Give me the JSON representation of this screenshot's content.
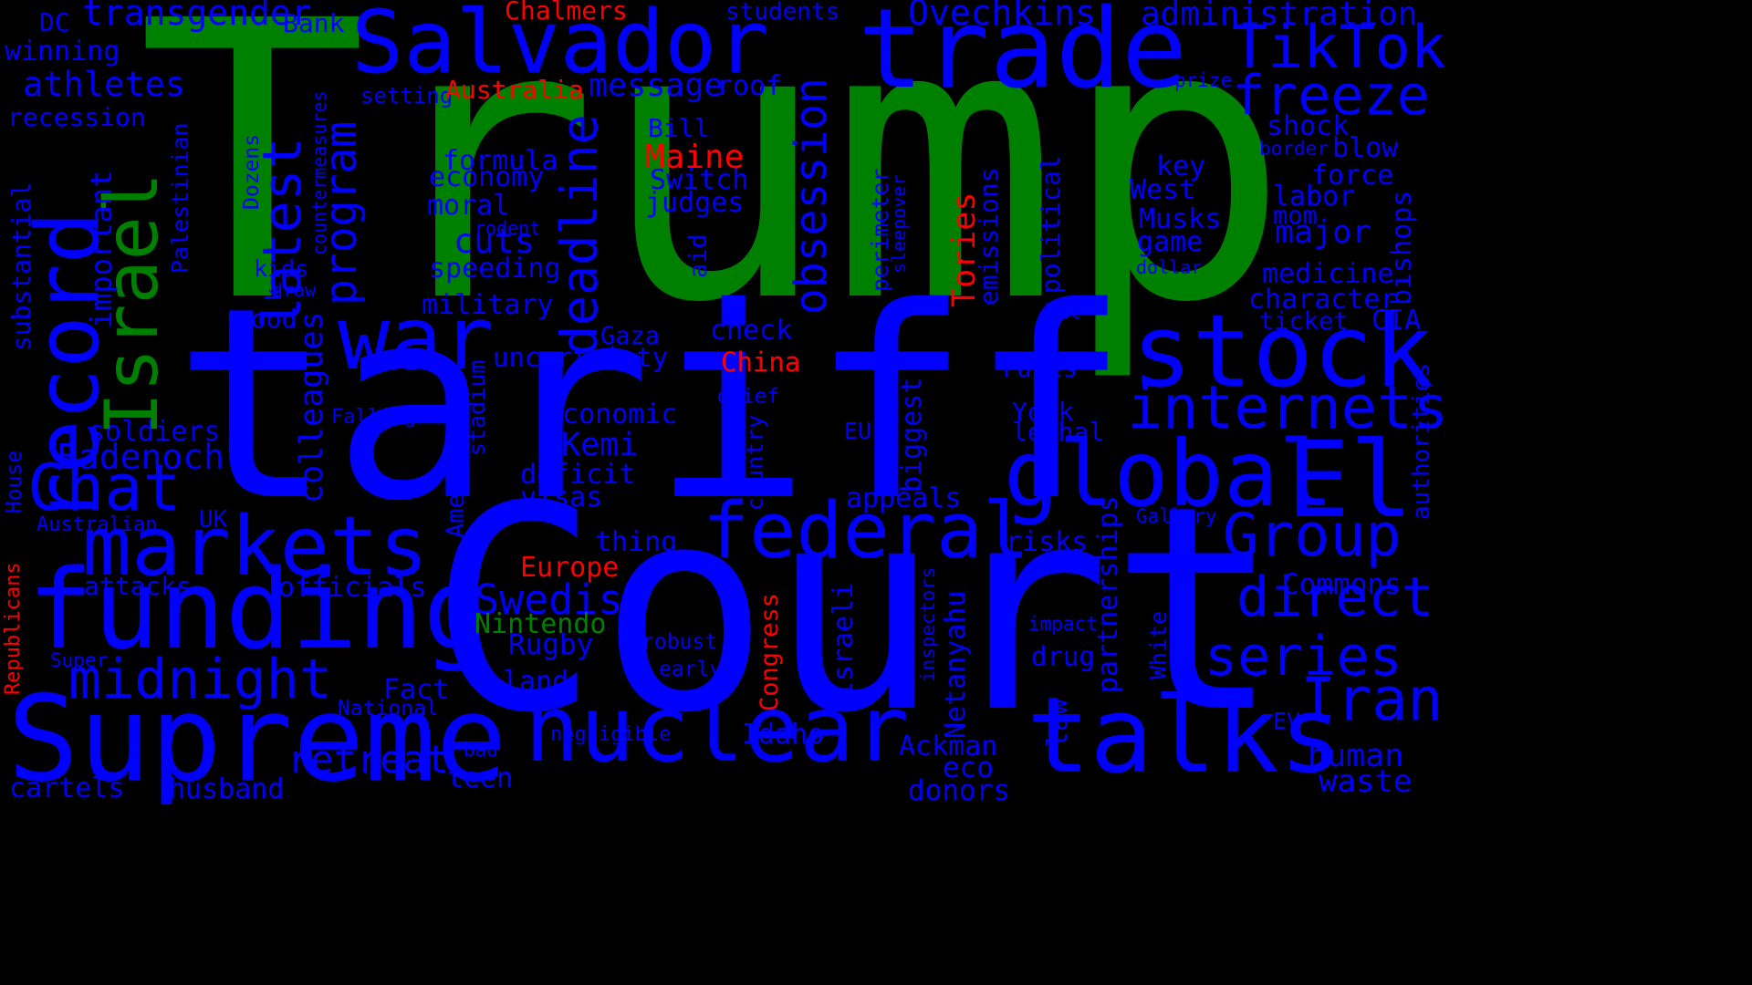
{
  "colors": {
    "background": "#000000",
    "blue": "#0000ff",
    "green": "#008000",
    "red": "#ff0000"
  },
  "words": [
    {
      "text": "Trump",
      "color": "green",
      "vertical": false
    },
    {
      "text": "tariff",
      "color": "blue",
      "vertical": false
    },
    {
      "text": "Court",
      "color": "blue",
      "vertical": false
    },
    {
      "text": "Supreme",
      "color": "blue",
      "vertical": false
    },
    {
      "text": "funding",
      "color": "blue",
      "vertical": false
    },
    {
      "text": "markets",
      "color": "blue",
      "vertical": false
    },
    {
      "text": "nuclear",
      "color": "blue",
      "vertical": false
    },
    {
      "text": "talks",
      "color": "blue",
      "vertical": false
    },
    {
      "text": "trade",
      "color": "blue",
      "vertical": false
    },
    {
      "text": "Salvador",
      "color": "blue",
      "vertical": false
    },
    {
      "text": "stock",
      "color": "blue",
      "vertical": false
    },
    {
      "text": "global",
      "color": "blue",
      "vertical": false
    },
    {
      "text": "El",
      "color": "blue",
      "vertical": false
    },
    {
      "text": "federal",
      "color": "blue",
      "vertical": false
    },
    {
      "text": "war",
      "color": "blue",
      "vertical": false
    },
    {
      "text": "Chat",
      "color": "blue",
      "vertical": false
    },
    {
      "text": "midnight",
      "color": "blue",
      "vertical": false
    },
    {
      "text": "internets",
      "color": "blue",
      "vertical": false
    },
    {
      "text": "direct",
      "color": "blue",
      "vertical": false
    },
    {
      "text": "series",
      "color": "blue",
      "vertical": false
    },
    {
      "text": "Iran",
      "color": "blue",
      "vertical": false
    },
    {
      "text": "Group",
      "color": "blue",
      "vertical": false
    },
    {
      "text": "TikTok",
      "color": "blue",
      "vertical": false
    },
    {
      "text": "freeze",
      "color": "blue",
      "vertical": false
    },
    {
      "text": "Swedish",
      "color": "blue",
      "vertical": false
    },
    {
      "text": "retreat",
      "color": "blue",
      "vertical": false
    },
    {
      "text": "Ovechkins",
      "color": "blue",
      "vertical": false
    },
    {
      "text": "administration",
      "color": "blue",
      "vertical": false
    },
    {
      "text": "transgender",
      "color": "blue",
      "vertical": false
    },
    {
      "text": "athletes",
      "color": "blue",
      "vertical": false
    },
    {
      "text": "Badenoch",
      "color": "blue",
      "vertical": false
    },
    {
      "text": "Kemi",
      "color": "blue",
      "vertical": false
    },
    {
      "text": "cuts",
      "color": "blue",
      "vertical": false
    },
    {
      "text": "message",
      "color": "blue",
      "vertical": false
    },
    {
      "text": "roof",
      "color": "blue",
      "vertical": false
    },
    {
      "text": "formula",
      "color": "blue",
      "vertical": false
    },
    {
      "text": "economy",
      "color": "blue",
      "vertical": false
    },
    {
      "text": "moral",
      "color": "blue",
      "vertical": false
    },
    {
      "text": "speeding",
      "color": "blue",
      "vertical": false
    },
    {
      "text": "military",
      "color": "blue",
      "vertical": false
    },
    {
      "text": "Gaza",
      "color": "blue",
      "vertical": false
    },
    {
      "text": "uncertainty",
      "color": "blue",
      "vertical": false
    },
    {
      "text": "economic",
      "color": "blue",
      "vertical": false
    },
    {
      "text": "deficit",
      "color": "blue",
      "vertical": false
    },
    {
      "text": "visas",
      "color": "blue",
      "vertical": false
    },
    {
      "text": "thing",
      "color": "blue",
      "vertical": false
    },
    {
      "text": "Rugby",
      "color": "blue",
      "vertical": false
    },
    {
      "text": "land",
      "color": "blue",
      "vertical": false
    },
    {
      "text": "teen",
      "color": "blue",
      "vertical": false
    },
    {
      "text": "Fact",
      "color": "blue",
      "vertical": false
    },
    {
      "text": "husband",
      "color": "blue",
      "vertical": false
    },
    {
      "text": "cartels",
      "color": "blue",
      "vertical": false
    },
    {
      "text": "soldiers",
      "color": "blue",
      "vertical": false
    },
    {
      "text": "officials",
      "color": "blue",
      "vertical": false
    },
    {
      "text": "attacks",
      "color": "blue",
      "vertical": false
    },
    {
      "text": "recession",
      "color": "blue",
      "vertical": false
    },
    {
      "text": "winning",
      "color": "blue",
      "vertical": false
    },
    {
      "text": "DC",
      "color": "blue",
      "vertical": false
    },
    {
      "text": "Bank",
      "color": "blue",
      "vertical": false
    },
    {
      "text": "students",
      "color": "blue",
      "vertical": false
    },
    {
      "text": "setting",
      "color": "blue",
      "vertical": false
    },
    {
      "text": "prize",
      "color": "blue",
      "vertical": false
    },
    {
      "text": "shock",
      "color": "blue",
      "vertical": false
    },
    {
      "text": "blow",
      "color": "blue",
      "vertical": false
    },
    {
      "text": "border",
      "color": "blue",
      "vertical": false
    },
    {
      "text": "force",
      "color": "blue",
      "vertical": false
    },
    {
      "text": "key",
      "color": "blue",
      "vertical": false
    },
    {
      "text": "West",
      "color": "blue",
      "vertical": false
    },
    {
      "text": "labor",
      "color": "blue",
      "vertical": false
    },
    {
      "text": "mom",
      "color": "blue",
      "vertical": false
    },
    {
      "text": "Musks",
      "color": "blue",
      "vertical": false
    },
    {
      "text": "major",
      "color": "blue",
      "vertical": false
    },
    {
      "text": "game",
      "color": "blue",
      "vertical": false
    },
    {
      "text": "dollar",
      "color": "blue",
      "vertical": false
    },
    {
      "text": "medicine",
      "color": "blue",
      "vertical": false
    },
    {
      "text": "character",
      "color": "blue",
      "vertical": false
    },
    {
      "text": "ticket",
      "color": "blue",
      "vertical": false
    },
    {
      "text": "CIA",
      "color": "blue",
      "vertical": false
    },
    {
      "text": "Bill",
      "color": "blue",
      "vertical": false
    },
    {
      "text": "Switch",
      "color": "blue",
      "vertical": false
    },
    {
      "text": "judges",
      "color": "blue",
      "vertical": false
    },
    {
      "text": "check",
      "color": "blue",
      "vertical": false
    },
    {
      "text": "rules",
      "color": "blue",
      "vertical": false
    },
    {
      "text": "York",
      "color": "blue",
      "vertical": false
    },
    {
      "text": "lethal",
      "color": "blue",
      "vertical": false
    },
    {
      "text": "chief",
      "color": "blue",
      "vertical": false
    },
    {
      "text": "Falling",
      "color": "blue",
      "vertical": false
    },
    {
      "text": "EU",
      "color": "blue",
      "vertical": false
    },
    {
      "text": "appeals",
      "color": "blue",
      "vertical": false
    },
    {
      "text": "risks",
      "color": "blue",
      "vertical": false
    },
    {
      "text": "Gallery",
      "color": "blue",
      "vertical": false
    },
    {
      "text": "Commons",
      "color": "blue",
      "vertical": false
    },
    {
      "text": "impact",
      "color": "blue",
      "vertical": false
    },
    {
      "text": "drug",
      "color": "blue",
      "vertical": false
    },
    {
      "text": "robust",
      "color": "blue",
      "vertical": false
    },
    {
      "text": "early",
      "color": "blue",
      "vertical": false
    },
    {
      "text": "negligible",
      "color": "blue",
      "vertical": false
    },
    {
      "text": "bad",
      "color": "blue",
      "vertical": false
    },
    {
      "text": "Idaho",
      "color": "blue",
      "vertical": false
    },
    {
      "text": "Ackman",
      "color": "blue",
      "vertical": false
    },
    {
      "text": "eco",
      "color": "blue",
      "vertical": false
    },
    {
      "text": "donors",
      "color": "blue",
      "vertical": false
    },
    {
      "text": "human",
      "color": "blue",
      "vertical": false
    },
    {
      "text": "waste",
      "color": "blue",
      "vertical": false
    },
    {
      "text": "EV",
      "color": "blue",
      "vertical": false
    },
    {
      "text": "UK",
      "color": "blue",
      "vertical": false
    },
    {
      "text": "Australian",
      "color": "blue",
      "vertical": false
    },
    {
      "text": "Super",
      "color": "blue",
      "vertical": false
    },
    {
      "text": "National",
      "color": "blue",
      "vertical": false
    },
    {
      "text": "kids",
      "color": "blue",
      "vertical": false
    },
    {
      "text": "draw",
      "color": "blue",
      "vertical": false
    },
    {
      "text": "good",
      "color": "blue",
      "vertical": false
    },
    {
      "text": "rodent",
      "color": "blue",
      "vertical": false
    },
    {
      "text": "Rat",
      "color": "blue",
      "vertical": false
    },
    {
      "text": "Chalmers",
      "color": "red",
      "vertical": false
    },
    {
      "text": "Australia",
      "color": "red",
      "vertical": false
    },
    {
      "text": "Maine",
      "color": "red",
      "vertical": false
    },
    {
      "text": "China",
      "color": "red",
      "vertical": false
    },
    {
      "text": "Europe",
      "color": "red",
      "vertical": false
    },
    {
      "text": "Nintendo",
      "color": "green",
      "vertical": false
    },
    {
      "text": "record",
      "color": "blue",
      "vertical": true
    },
    {
      "text": "Israel",
      "color": "green",
      "vertical": true
    },
    {
      "text": "latest",
      "color": "blue",
      "vertical": true
    },
    {
      "text": "program",
      "color": "blue",
      "vertical": true
    },
    {
      "text": "deadline",
      "color": "blue",
      "vertical": true
    },
    {
      "text": "obsession",
      "color": "blue",
      "vertical": true
    },
    {
      "text": "colleagues",
      "color": "blue",
      "vertical": true
    },
    {
      "text": "important",
      "color": "blue",
      "vertical": true
    },
    {
      "text": "Palestinian",
      "color": "blue",
      "vertical": true
    },
    {
      "text": "substantial",
      "color": "blue",
      "vertical": true
    },
    {
      "text": "House",
      "color": "blue",
      "vertical": true
    },
    {
      "text": "Dozens",
      "color": "blue",
      "vertical": true
    },
    {
      "text": "k",
      "color": "blue",
      "vertical": true
    },
    {
      "text": "countermeasures",
      "color": "blue",
      "vertical": true
    },
    {
      "text": "aid",
      "color": "blue",
      "vertical": true
    },
    {
      "text": "stadium",
      "color": "blue",
      "vertical": true
    },
    {
      "text": "American",
      "color": "blue",
      "vertical": true
    },
    {
      "text": "country",
      "color": "blue",
      "vertical": true
    },
    {
      "text": "biggest",
      "color": "blue",
      "vertical": true
    },
    {
      "text": "perimeter",
      "color": "blue",
      "vertical": true
    },
    {
      "text": "sleepover",
      "color": "blue",
      "vertical": true
    },
    {
      "text": "emissions",
      "color": "blue",
      "vertical": true
    },
    {
      "text": "political",
      "color": "blue",
      "vertical": true
    },
    {
      "text": "partnerships",
      "color": "blue",
      "vertical": true
    },
    {
      "text": "Israeli",
      "color": "blue",
      "vertical": true
    },
    {
      "text": "inspectors",
      "color": "blue",
      "vertical": true
    },
    {
      "text": "Netanyahu",
      "color": "blue",
      "vertical": true
    },
    {
      "text": "law",
      "color": "blue",
      "vertical": true
    },
    {
      "text": "White",
      "color": "blue",
      "vertical": true
    },
    {
      "text": "bishops",
      "color": "blue",
      "vertical": true
    },
    {
      "text": "authorities",
      "color": "blue",
      "vertical": true
    },
    {
      "text": "Republicans",
      "color": "red",
      "vertical": true
    },
    {
      "text": "Tories",
      "color": "red",
      "vertical": true
    },
    {
      "text": "Congress",
      "color": "red",
      "vertical": true
    }
  ]
}
